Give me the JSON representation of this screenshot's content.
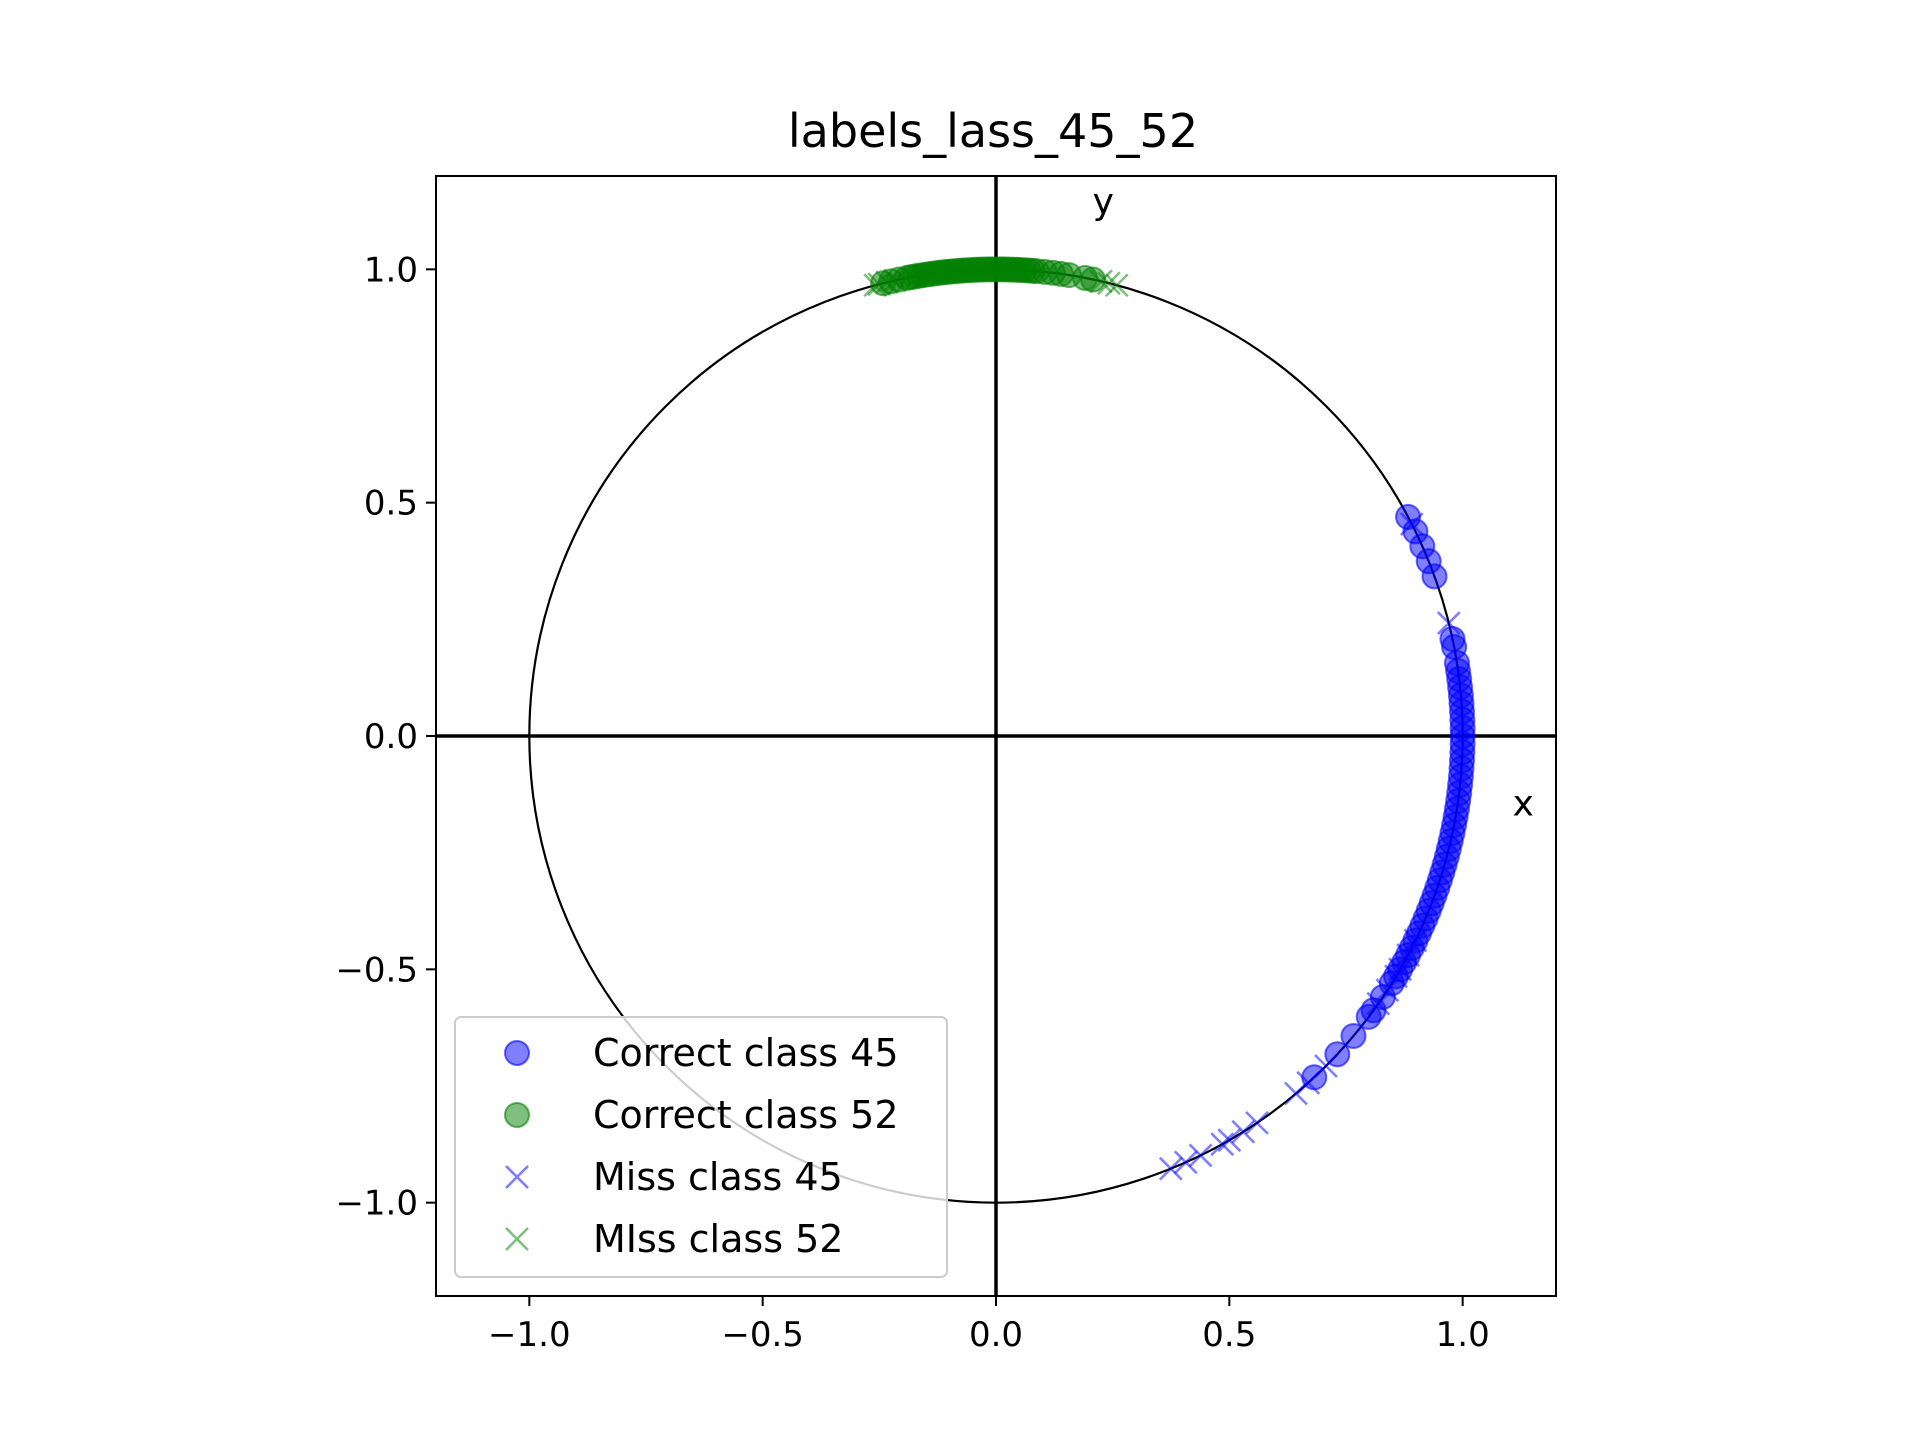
{
  "chart_data": {
    "type": "scatter",
    "title": "labels_lass_45_52",
    "xlim": [
      -1.2,
      1.2
    ],
    "ylim": [
      -1.2,
      1.2
    ],
    "xticks": [
      -1.0,
      -0.5,
      0.0,
      0.5,
      1.0
    ],
    "yticks": [
      -1.0,
      -0.5,
      0.0,
      0.5,
      1.0
    ],
    "xtick_labels": [
      "−1.0",
      "−0.5",
      "0.0",
      "0.5",
      "1.0"
    ],
    "ytick_labels": [
      "−1.0",
      "−0.5",
      "0.0",
      "0.5",
      "1.0"
    ],
    "grid": false,
    "unit_circle": true,
    "axes_lines": true,
    "annotations": [
      {
        "text": "x",
        "x": 1.13,
        "y": -0.17
      },
      {
        "text": "y",
        "x": 0.23,
        "y": 1.12
      }
    ],
    "legend": {
      "placement": "lower-left"
    },
    "series": [
      {
        "name": "Correct class 45",
        "marker": "circle",
        "color": "#0000ff",
        "angles_deg": [
          28,
          26,
          24,
          22,
          20,
          12,
          11,
          9,
          8,
          7,
          6,
          5,
          4,
          3,
          2,
          1,
          0,
          -1,
          -2,
          -3,
          -4,
          -5,
          -6,
          -7,
          -8,
          -9,
          -10,
          -11,
          -12,
          -13,
          -14,
          -15,
          -16,
          -17,
          -18,
          -19,
          -20,
          -21,
          -22,
          -23,
          -24,
          -25,
          -26,
          -27,
          -28,
          -29,
          -30,
          -31,
          -32,
          -34,
          -36,
          -37,
          -40,
          -43,
          -47
        ]
      },
      {
        "name": "Correct class 52",
        "marker": "circle",
        "color": "#008000",
        "angles_deg": [
          104,
          103,
          102,
          101,
          100.5,
          100,
          99.5,
          99,
          98.5,
          98,
          97.5,
          97,
          96.5,
          96,
          95.5,
          95,
          94.5,
          94,
          93.5,
          93,
          92.5,
          92,
          91.5,
          91,
          90.5,
          90,
          89.5,
          89,
          88.5,
          88,
          87.5,
          87,
          86.5,
          86,
          85.5,
          85,
          84,
          83,
          82,
          81,
          79,
          78
        ]
      },
      {
        "name": "Miss class 45",
        "marker": "x",
        "color": "#0000ff",
        "angles_deg": [
          27,
          14,
          -26,
          -28,
          -30,
          -31,
          -33,
          -35,
          -45,
          -48,
          -50,
          -56,
          -58,
          -60,
          -61,
          -64,
          -66,
          -68
        ]
      },
      {
        "name": "MIss class 52",
        "marker": "x",
        "color": "#008000",
        "angles_deg": [
          105,
          104.5,
          103.5,
          102.5,
          77,
          76,
          75
        ]
      }
    ]
  }
}
